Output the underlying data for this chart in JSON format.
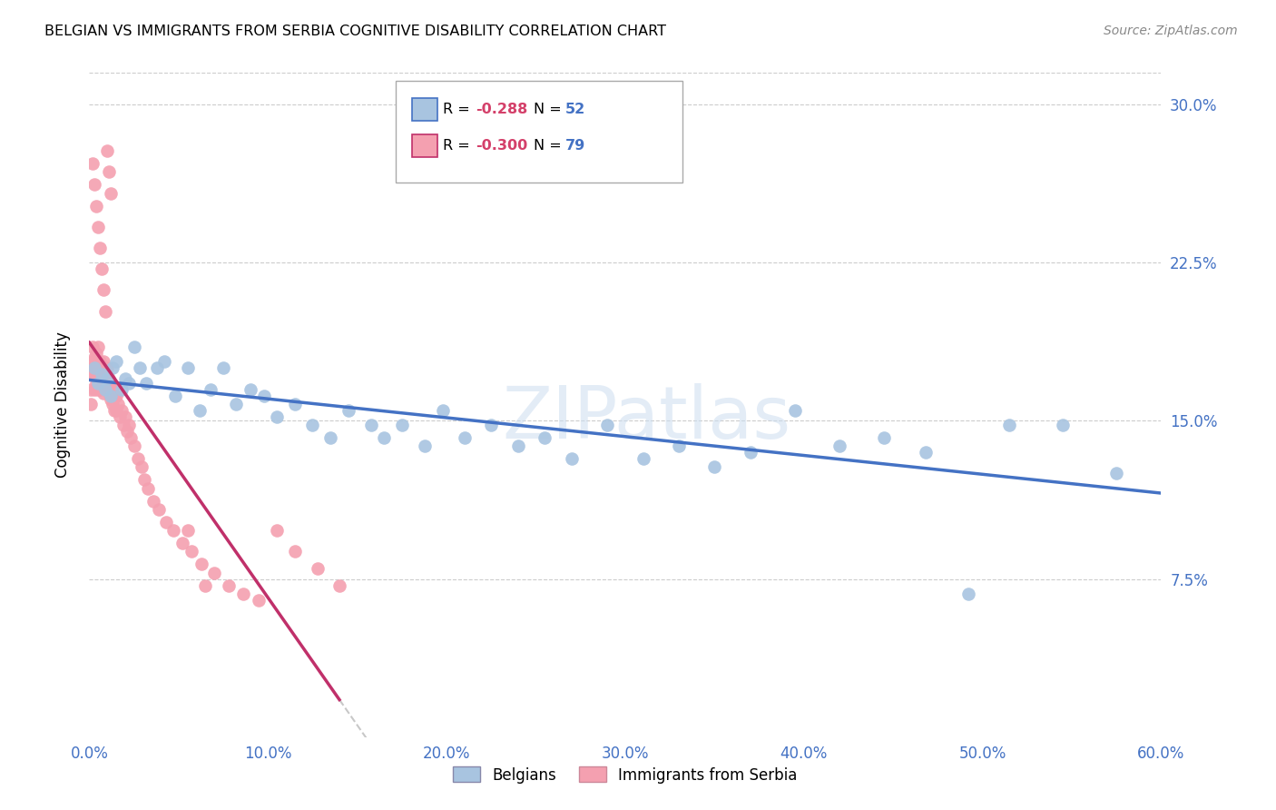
{
  "title": "BELGIAN VS IMMIGRANTS FROM SERBIA COGNITIVE DISABILITY CORRELATION CHART",
  "source": "Source: ZipAtlas.com",
  "ylabel": "Cognitive Disability",
  "xlim": [
    0.0,
    0.6
  ],
  "ylim": [
    0.0,
    0.315
  ],
  "belgian_color": "#a8c4e0",
  "serbia_color": "#f4a0b0",
  "trendline_belgian_color": "#4472c4",
  "trendline_serbia_color": "#c0306a",
  "trendline_serbian_dashed_color": "#c8c8c8",
  "watermark": "ZIPatlas",
  "belgian_x": [
    0.003,
    0.005,
    0.007,
    0.009,
    0.01,
    0.012,
    0.013,
    0.015,
    0.018,
    0.02,
    0.022,
    0.025,
    0.028,
    0.032,
    0.038,
    0.042,
    0.048,
    0.055,
    0.062,
    0.068,
    0.075,
    0.082,
    0.09,
    0.098,
    0.105,
    0.115,
    0.125,
    0.135,
    0.145,
    0.158,
    0.165,
    0.175,
    0.188,
    0.198,
    0.21,
    0.225,
    0.24,
    0.255,
    0.27,
    0.29,
    0.31,
    0.33,
    0.35,
    0.37,
    0.395,
    0.42,
    0.445,
    0.468,
    0.492,
    0.515,
    0.545,
    0.575
  ],
  "belgian_y": [
    0.175,
    0.168,
    0.172,
    0.165,
    0.17,
    0.162,
    0.175,
    0.178,
    0.165,
    0.17,
    0.168,
    0.185,
    0.175,
    0.168,
    0.175,
    0.178,
    0.162,
    0.175,
    0.155,
    0.165,
    0.175,
    0.158,
    0.165,
    0.162,
    0.152,
    0.158,
    0.148,
    0.142,
    0.155,
    0.148,
    0.142,
    0.148,
    0.138,
    0.155,
    0.142,
    0.148,
    0.138,
    0.142,
    0.132,
    0.148,
    0.132,
    0.138,
    0.128,
    0.135,
    0.155,
    0.138,
    0.142,
    0.135,
    0.068,
    0.148,
    0.148,
    0.125
  ],
  "serbia_x": [
    0.001,
    0.001,
    0.001,
    0.002,
    0.002,
    0.002,
    0.003,
    0.003,
    0.003,
    0.004,
    0.004,
    0.004,
    0.005,
    0.005,
    0.005,
    0.005,
    0.006,
    0.006,
    0.006,
    0.007,
    0.007,
    0.008,
    0.008,
    0.008,
    0.009,
    0.009,
    0.01,
    0.01,
    0.011,
    0.011,
    0.012,
    0.012,
    0.013,
    0.013,
    0.014,
    0.014,
    0.015,
    0.015,
    0.016,
    0.017,
    0.018,
    0.019,
    0.02,
    0.021,
    0.022,
    0.023,
    0.025,
    0.027,
    0.029,
    0.031,
    0.033,
    0.036,
    0.039,
    0.043,
    0.047,
    0.052,
    0.057,
    0.063,
    0.07,
    0.078,
    0.086,
    0.095,
    0.105,
    0.115,
    0.128,
    0.14,
    0.002,
    0.003,
    0.004,
    0.005,
    0.006,
    0.007,
    0.008,
    0.009,
    0.01,
    0.011,
    0.012,
    0.055,
    0.065
  ],
  "serbia_y": [
    0.175,
    0.165,
    0.158,
    0.185,
    0.178,
    0.172,
    0.18,
    0.172,
    0.165,
    0.182,
    0.175,
    0.168,
    0.185,
    0.178,
    0.172,
    0.165,
    0.178,
    0.172,
    0.165,
    0.175,
    0.168,
    0.178,
    0.17,
    0.163,
    0.172,
    0.165,
    0.175,
    0.168,
    0.17,
    0.163,
    0.168,
    0.16,
    0.165,
    0.158,
    0.162,
    0.155,
    0.162,
    0.155,
    0.158,
    0.152,
    0.155,
    0.148,
    0.152,
    0.145,
    0.148,
    0.142,
    0.138,
    0.132,
    0.128,
    0.122,
    0.118,
    0.112,
    0.108,
    0.102,
    0.098,
    0.092,
    0.088,
    0.082,
    0.078,
    0.072,
    0.068,
    0.065,
    0.098,
    0.088,
    0.08,
    0.072,
    0.272,
    0.262,
    0.252,
    0.242,
    0.232,
    0.222,
    0.212,
    0.202,
    0.278,
    0.268,
    0.258,
    0.098,
    0.072
  ]
}
